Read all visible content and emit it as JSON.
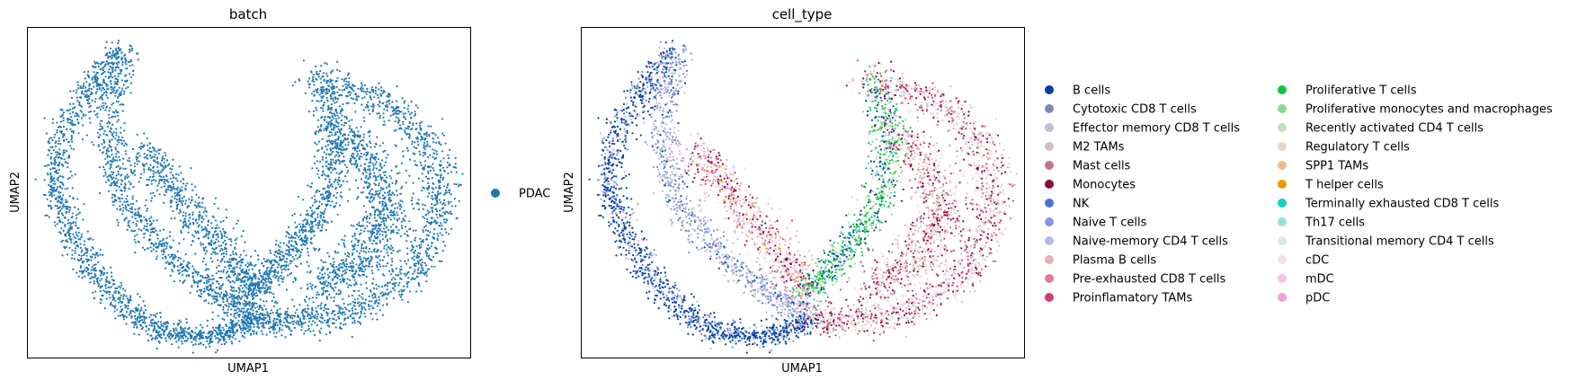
{
  "chart_data": [
    {
      "type": "scatter",
      "title": "batch",
      "xlabel": "UMAP1",
      "ylabel": "UMAP2",
      "grid": false,
      "ticks": false,
      "legend_position": "right",
      "series": [
        {
          "name": "PDAC",
          "color": "#1f77b4"
        }
      ]
    },
    {
      "type": "scatter",
      "title": "cell_type",
      "xlabel": "UMAP1",
      "ylabel": "UMAP2",
      "grid": false,
      "ticks": false,
      "legend_position": "right",
      "series": [
        {
          "name": "B cells",
          "color": "#023fa5"
        },
        {
          "name": "Cytotoxic CD8 T cells",
          "color": "#7d87b9"
        },
        {
          "name": "Effector memory CD8 T cells",
          "color": "#bec1d4"
        },
        {
          "name": "M2 TAMs",
          "color": "#d6bcc0"
        },
        {
          "name": "Mast cells",
          "color": "#bb7784"
        },
        {
          "name": "Monocytes",
          "color": "#8e063b"
        },
        {
          "name": "NK",
          "color": "#4a6fe3"
        },
        {
          "name": "Naive T cells",
          "color": "#8595e1"
        },
        {
          "name": "Naive-memory CD4 T cells",
          "color": "#b5bbe3"
        },
        {
          "name": "Plasma B cells",
          "color": "#e6afb9"
        },
        {
          "name": "Pre-exhausted CD8 T cells",
          "color": "#e07b91"
        },
        {
          "name": "Proinflamatory TAMs",
          "color": "#d33f6a"
        },
        {
          "name": "Proliferative T cells",
          "color": "#11c638"
        },
        {
          "name": "Proliferative monocytes and macrophages",
          "color": "#8dd593"
        },
        {
          "name": "Recently activated CD4 T cells",
          "color": "#c6dec7"
        },
        {
          "name": "Regulatory T cells",
          "color": "#ead3c6"
        },
        {
          "name": "SPP1 TAMs",
          "color": "#f0b98d"
        },
        {
          "name": "T helper cells",
          "color": "#ef9708"
        },
        {
          "name": "Terminally exhausted CD8 T cells",
          "color": "#0fcfc0"
        },
        {
          "name": "Th17 cells",
          "color": "#9cded6"
        },
        {
          "name": "Transitional memory CD4 T cells",
          "color": "#d5eae7"
        },
        {
          "name": "cDC",
          "color": "#f3e1eb"
        },
        {
          "name": "mDC",
          "color": "#f6c4e1"
        },
        {
          "name": "pDC",
          "color": "#f79cd4"
        }
      ]
    }
  ]
}
